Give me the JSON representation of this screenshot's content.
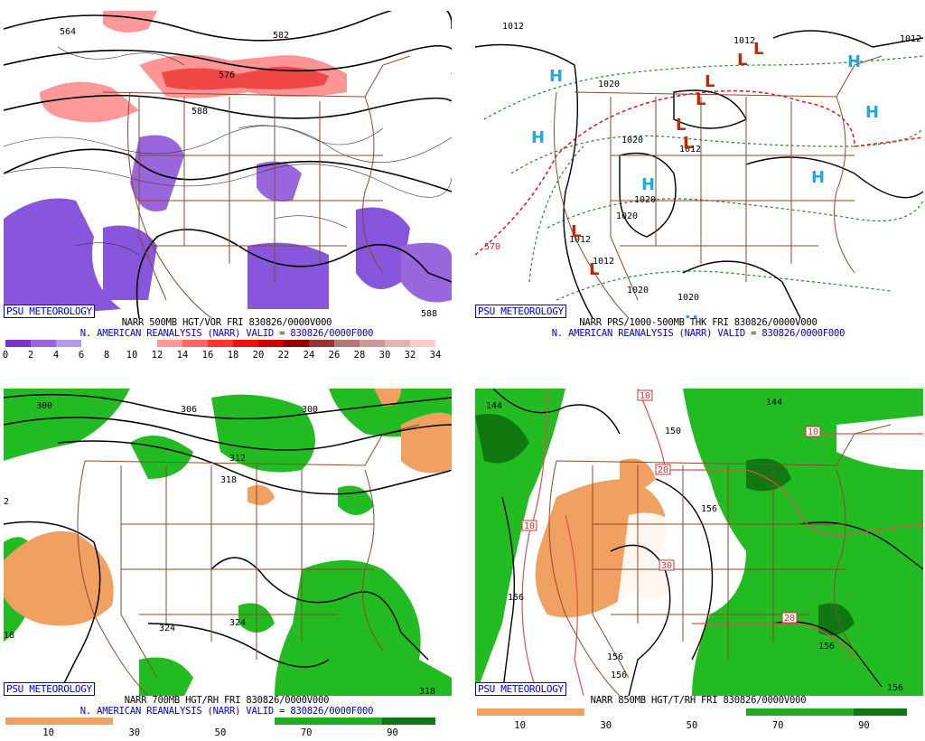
{
  "panels": [
    {
      "badge": "PSU METEOROLOGY",
      "title1": "NARR 500MB HGT/VOR FRI 830826/0000V000",
      "title2": "N. AMERICAN REANALYSIS (NARR) VALID = 830826/0000F000",
      "colorbar_colors": [
        "#8033cc",
        "#9966dd",
        "#b399e6",
        "#ffffff",
        "#ffffff",
        "#ffffff",
        "#ff9999",
        "#ff6666",
        "#ff3333",
        "#ee1111",
        "#cc0000",
        "#990000",
        "#993333",
        "#b37777",
        "#cc9999",
        "#e6b3b3",
        "#ffcccc"
      ],
      "colorbar_labels": [
        "0",
        "2",
        "4",
        "6",
        "8",
        "10",
        "12",
        "14",
        "16",
        "18",
        "20",
        "22",
        "24",
        "26",
        "28",
        "30",
        "32",
        "34"
      ],
      "contour_labels": [
        "564",
        "582",
        "576",
        "588",
        "588"
      ]
    },
    {
      "badge": "PSU METEOROLOGY",
      "title1": "NARR PRS/1000-500MB THK FRI 830826/0000V000",
      "title2": "N. AMERICAN REANALYSIS (NARR) VALID = 830826/0000F000",
      "contour_labels": [
        "1012",
        "1012",
        "1012",
        "1020",
        "1020",
        "1012",
        "1020",
        "1012",
        "1012",
        "1020",
        "1020",
        "1020",
        "570"
      ],
      "high_marker": "H",
      "low_marker": "L"
    },
    {
      "badge": "PSU METEOROLOGY",
      "title1": "NARR 700MB HGT/RH FRI 830826/0000V000",
      "title2": "N. AMERICAN REANALYSIS (NARR) VALID = 830826/0000F000",
      "colorbar_colors": [
        "#f0a060",
        "#f0a060",
        "#ffffff",
        "#ffffff",
        "#ffffff",
        "#22aa22",
        "#22aa22",
        "#117711"
      ],
      "colorbar_labels": [
        "10",
        "30",
        "50",
        "70",
        "90"
      ],
      "contour_labels": [
        "300",
        "306",
        "300",
        "312",
        "318",
        "324",
        "324",
        "318",
        "2",
        "18"
      ]
    },
    {
      "badge": "PSU METEOROLOGY",
      "title1": "NARR 850MB HGT/T/RH FRI 830826/0000V000",
      "title2": "",
      "colorbar_colors": [
        "#f0a060",
        "#f0a060",
        "#ffffff",
        "#ffffff",
        "#ffffff",
        "#22aa22",
        "#22aa22",
        "#117711"
      ],
      "colorbar_labels": [
        "10",
        "30",
        "50",
        "70",
        "90"
      ],
      "contour_labels": [
        "144",
        "144",
        "150",
        "156",
        "156",
        "156",
        "156",
        "156",
        "156"
      ],
      "temp_labels": [
        "10",
        "10",
        "20",
        "20",
        "30",
        "10"
      ]
    }
  ],
  "colors": {
    "border": "#8b4a2b",
    "highs": "#22aadd",
    "lows": "#cc2200",
    "dashed_green": "#228822",
    "dashed_red": "#dd2222",
    "badge_blue": "#0000cc",
    "purple": "#8855dd",
    "orange": "#f0a060",
    "green": "#22bb22"
  }
}
